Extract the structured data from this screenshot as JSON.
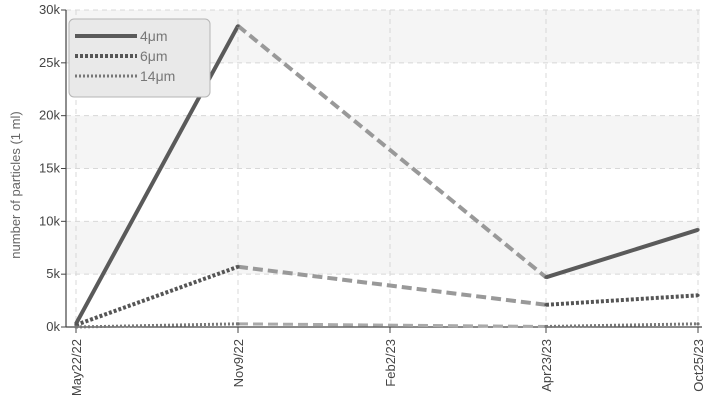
{
  "chart_data": {
    "type": "line",
    "x": [
      "May22/22",
      "Nov9/22",
      "Feb2/23",
      "Apr23/23",
      "Oct25/23"
    ],
    "xlabel": "",
    "ylabel": "number of particles (1 ml)",
    "ylim": [
      0,
      30000
    ],
    "yticks": [
      0,
      5000,
      10000,
      15000,
      20000,
      25000,
      30000
    ],
    "ytick_labels": [
      "0k",
      "5k",
      "10k",
      "15k",
      "20k",
      "25k",
      "30k"
    ],
    "grid": true,
    "legend": "top-left",
    "series": [
      {
        "name": "4μm",
        "color": "#5a5a5a",
        "points": [
          {
            "x": "May22/22",
            "y": 300
          },
          {
            "x": "Nov9/22",
            "y": 28500
          },
          {
            "x": "Apr23/23",
            "y": 4700
          },
          {
            "x": "Oct25/23",
            "y": 9200
          }
        ]
      },
      {
        "name": "6μm",
        "color": "#555555",
        "points": [
          {
            "x": "May22/22",
            "y": 200
          },
          {
            "x": "Nov9/22",
            "y": 5700
          },
          {
            "x": "Apr23/23",
            "y": 2100
          },
          {
            "x": "Oct25/23",
            "y": 3000
          }
        ]
      },
      {
        "name": "14μm",
        "color": "#777777",
        "points": [
          {
            "x": "May22/22",
            "y": 0
          },
          {
            "x": "Nov9/22",
            "y": 300
          },
          {
            "x": "Apr23/23",
            "y": 50
          },
          {
            "x": "Oct25/23",
            "y": 300
          }
        ]
      }
    ]
  }
}
